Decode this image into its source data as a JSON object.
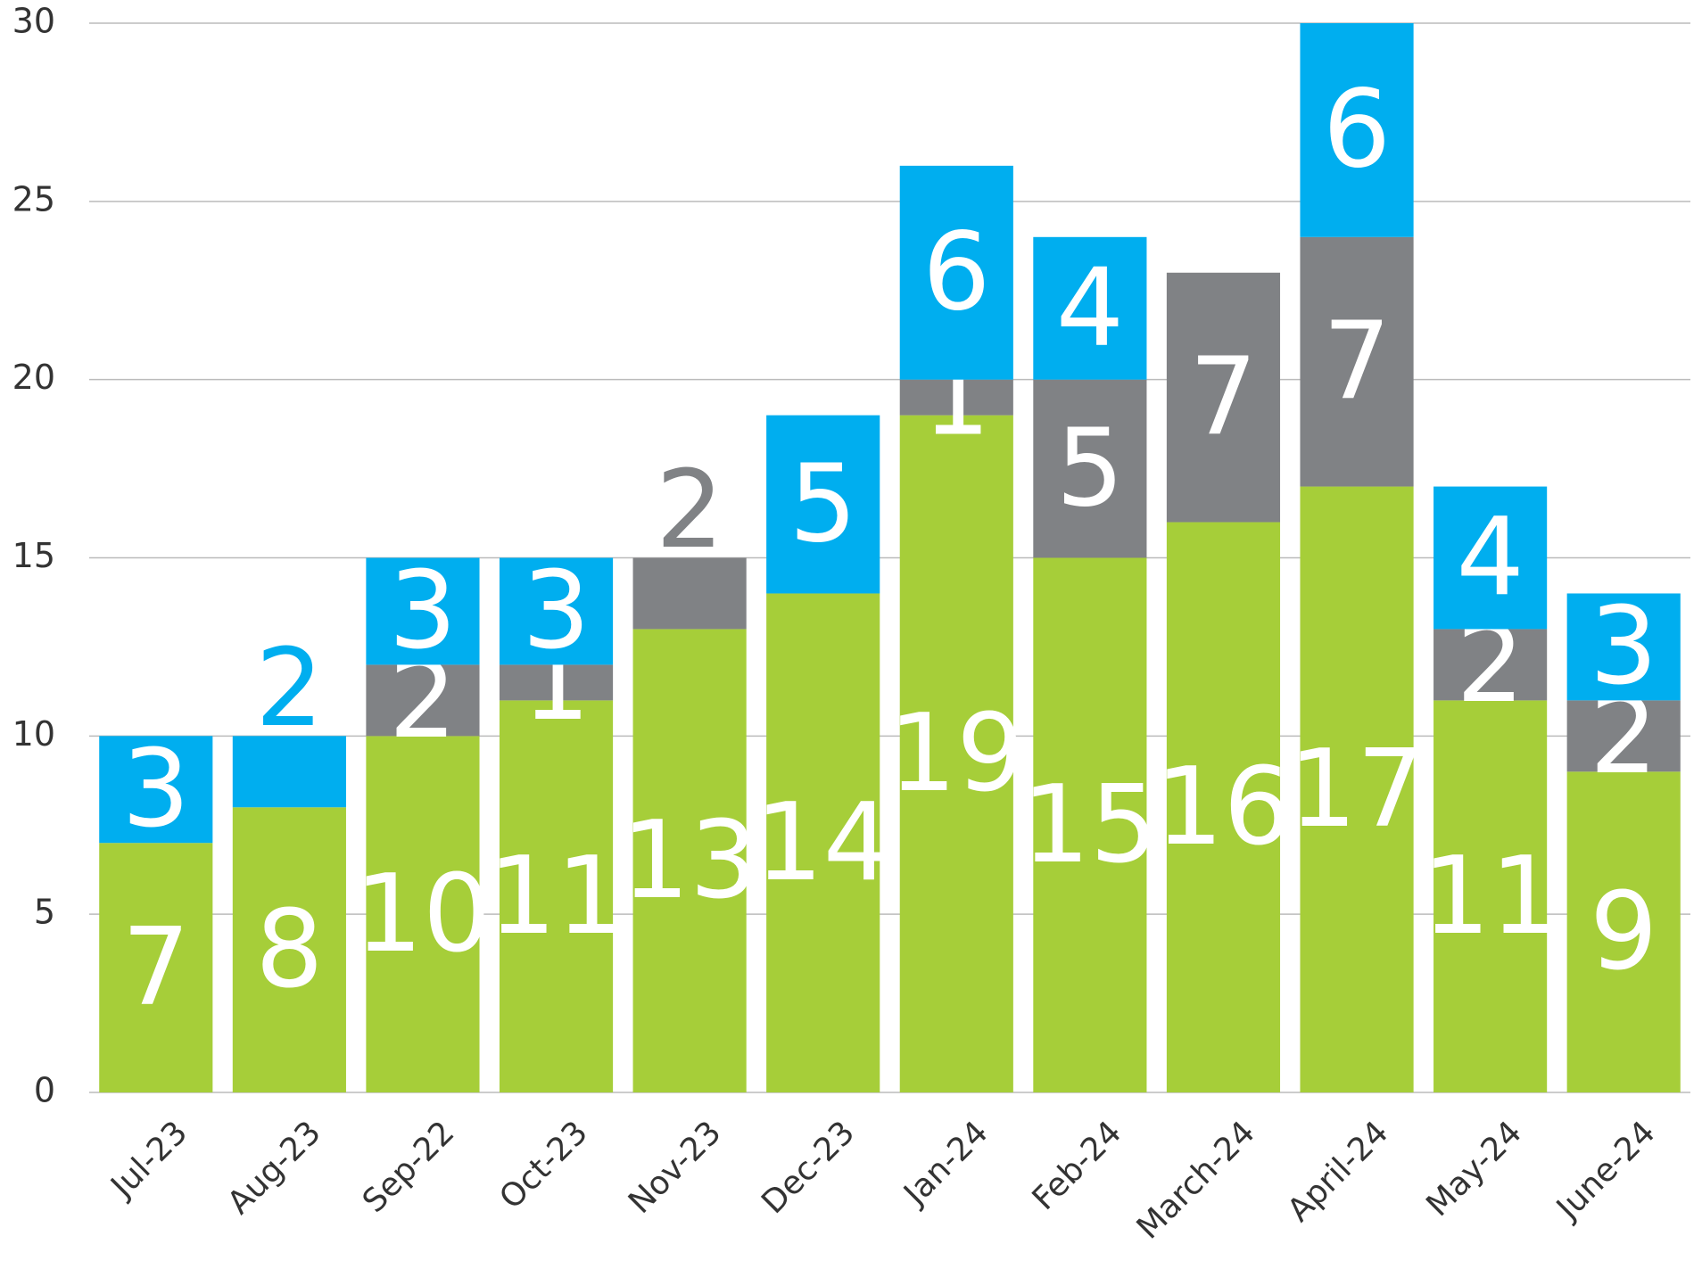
{
  "chart_data": {
    "type": "stacked_bar",
    "categories": [
      "Jul-23",
      "Aug-23",
      "Sep-22",
      "Oct-23",
      "Nov-23",
      "Dec-23",
      "Jan-24",
      "Feb-24",
      "March-24",
      "April-24",
      "May-24",
      "June-24"
    ],
    "series": [
      {
        "color": "#a6ce39",
        "values": [
          7,
          8,
          10,
          11,
          13,
          14,
          19,
          15,
          16,
          17,
          11,
          9
        ]
      },
      {
        "color": "#808285",
        "values": [
          null,
          null,
          2,
          1,
          2,
          null,
          1,
          5,
          7,
          7,
          2,
          2
        ]
      },
      {
        "color": "#00aeef",
        "values": [
          3,
          2,
          3,
          3,
          null,
          5,
          6,
          4,
          null,
          6,
          4,
          3
        ]
      }
    ],
    "ylim": [
      0,
      30
    ],
    "yticks": [
      0,
      5,
      10,
      15,
      20,
      25,
      30
    ],
    "grid": true
  }
}
